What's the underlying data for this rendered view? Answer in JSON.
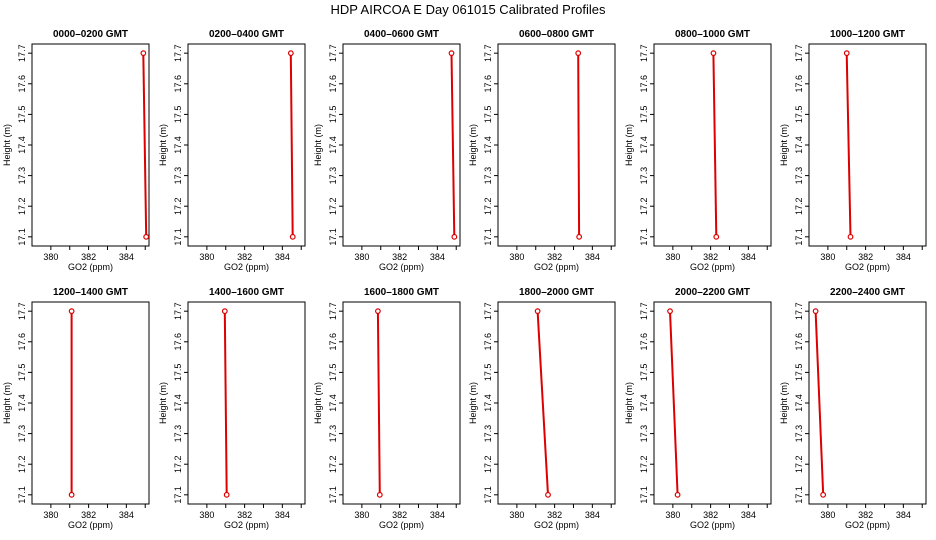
{
  "figure": {
    "title": "HDP  AIRCOA E  Day 061015  Calibrated Profiles"
  },
  "colors": {
    "line": "#dd0000",
    "axes": "#000000",
    "background": "#ffffff"
  },
  "chart_data": [
    {
      "type": "line",
      "title": "0000–0200 GMT",
      "xlabel": "GO2 (ppm)",
      "ylabel": "Height (m)",
      "xlim": [
        379,
        385.2
      ],
      "ylim": [
        17.07,
        17.73
      ],
      "xticks": [
        "380",
        "382",
        "384"
      ],
      "yticks": [
        "17.1",
        "17.2",
        "17.3",
        "17.4",
        "17.5",
        "17.6",
        "17.7"
      ],
      "series": [
        {
          "x": [
            385.05,
            384.9
          ],
          "y": [
            17.1,
            17.7
          ]
        }
      ]
    },
    {
      "type": "line",
      "title": "0200–0400 GMT",
      "xlabel": "GO2 (ppm)",
      "ylabel": "Height (m)",
      "xlim": [
        379,
        385.2
      ],
      "ylim": [
        17.07,
        17.73
      ],
      "xticks": [
        "380",
        "382",
        "384"
      ],
      "yticks": [
        "17.1",
        "17.2",
        "17.3",
        "17.4",
        "17.5",
        "17.6",
        "17.7"
      ],
      "series": [
        {
          "x": [
            384.55,
            384.45
          ],
          "y": [
            17.1,
            17.7
          ]
        }
      ]
    },
    {
      "type": "line",
      "title": "0400–0600 GMT",
      "xlabel": "GO2 (ppm)",
      "ylabel": "Height (m)",
      "xlim": [
        379,
        385.2
      ],
      "ylim": [
        17.07,
        17.73
      ],
      "xticks": [
        "380",
        "382",
        "384"
      ],
      "yticks": [
        "17.1",
        "17.2",
        "17.3",
        "17.4",
        "17.5",
        "17.6",
        "17.7"
      ],
      "series": [
        {
          "x": [
            384.9,
            384.75
          ],
          "y": [
            17.1,
            17.7
          ]
        }
      ]
    },
    {
      "type": "line",
      "title": "0600–0800 GMT",
      "xlabel": "GO2 (ppm)",
      "ylabel": "Height (m)",
      "xlim": [
        379,
        385.2
      ],
      "ylim": [
        17.07,
        17.73
      ],
      "xticks": [
        "380",
        "382",
        "384"
      ],
      "yticks": [
        "17.1",
        "17.2",
        "17.3",
        "17.4",
        "17.5",
        "17.6",
        "17.7"
      ],
      "series": [
        {
          "x": [
            383.3,
            383.25
          ],
          "y": [
            17.1,
            17.7
          ]
        }
      ]
    },
    {
      "type": "line",
      "title": "0800–1000 GMT",
      "xlabel": "GO2 (ppm)",
      "ylabel": "Height (m)",
      "xlim": [
        379,
        385.2
      ],
      "ylim": [
        17.07,
        17.73
      ],
      "xticks": [
        "380",
        "382",
        "384"
      ],
      "yticks": [
        "17.1",
        "17.2",
        "17.3",
        "17.4",
        "17.5",
        "17.6",
        "17.7"
      ],
      "series": [
        {
          "x": [
            382.3,
            382.15
          ],
          "y": [
            17.1,
            17.7
          ]
        }
      ]
    },
    {
      "type": "line",
      "title": "1000–1200 GMT",
      "xlabel": "GO2 (ppm)",
      "ylabel": "Height (m)",
      "xlim": [
        379,
        385.2
      ],
      "ylim": [
        17.07,
        17.73
      ],
      "xticks": [
        "380",
        "382",
        "384"
      ],
      "yticks": [
        "17.1",
        "17.2",
        "17.3",
        "17.4",
        "17.5",
        "17.6",
        "17.7"
      ],
      "series": [
        {
          "x": [
            381.2,
            381.0
          ],
          "y": [
            17.1,
            17.7
          ]
        }
      ]
    },
    {
      "type": "line",
      "title": "1200–1400 GMT",
      "xlabel": "GO2 (ppm)",
      "ylabel": "Height (m)",
      "xlim": [
        379,
        385.2
      ],
      "ylim": [
        17.07,
        17.73
      ],
      "xticks": [
        "380",
        "382",
        "384"
      ],
      "yticks": [
        "17.1",
        "17.2",
        "17.3",
        "17.4",
        "17.5",
        "17.6",
        "17.7"
      ],
      "series": [
        {
          "x": [
            381.1,
            381.1
          ],
          "y": [
            17.1,
            17.7
          ]
        }
      ]
    },
    {
      "type": "line",
      "title": "1400–1600 GMT",
      "xlabel": "GO2 (ppm)",
      "ylabel": "Height (m)",
      "xlim": [
        379,
        385.2
      ],
      "ylim": [
        17.07,
        17.73
      ],
      "xticks": [
        "380",
        "382",
        "384"
      ],
      "yticks": [
        "17.1",
        "17.2",
        "17.3",
        "17.4",
        "17.5",
        "17.6",
        "17.7"
      ],
      "series": [
        {
          "x": [
            381.05,
            380.95
          ],
          "y": [
            17.1,
            17.7
          ]
        }
      ]
    },
    {
      "type": "line",
      "title": "1600–1800 GMT",
      "xlabel": "GO2 (ppm)",
      "ylabel": "Height (m)",
      "xlim": [
        379,
        385.2
      ],
      "ylim": [
        17.07,
        17.73
      ],
      "xticks": [
        "380",
        "382",
        "384"
      ],
      "yticks": [
        "17.1",
        "17.2",
        "17.3",
        "17.4",
        "17.5",
        "17.6",
        "17.7"
      ],
      "series": [
        {
          "x": [
            380.95,
            380.85
          ],
          "y": [
            17.1,
            17.7
          ]
        }
      ]
    },
    {
      "type": "line",
      "title": "1800–2000 GMT",
      "xlabel": "GO2 (ppm)",
      "ylabel": "Height (m)",
      "xlim": [
        379,
        385.2
      ],
      "ylim": [
        17.07,
        17.73
      ],
      "xticks": [
        "380",
        "382",
        "384"
      ],
      "yticks": [
        "17.1",
        "17.2",
        "17.3",
        "17.4",
        "17.5",
        "17.6",
        "17.7"
      ],
      "series": [
        {
          "x": [
            381.65,
            381.1
          ],
          "y": [
            17.1,
            17.7
          ]
        }
      ]
    },
    {
      "type": "line",
      "title": "2000–2200 GMT",
      "xlabel": "GO2 (ppm)",
      "ylabel": "Height (m)",
      "xlim": [
        379,
        385.2
      ],
      "ylim": [
        17.07,
        17.73
      ],
      "xticks": [
        "380",
        "382",
        "384"
      ],
      "yticks": [
        "17.1",
        "17.2",
        "17.3",
        "17.4",
        "17.5",
        "17.6",
        "17.7"
      ],
      "series": [
        {
          "x": [
            380.25,
            379.85
          ],
          "y": [
            17.1,
            17.7
          ]
        }
      ]
    },
    {
      "type": "line",
      "title": "2200–2400 GMT",
      "xlabel": "GO2 (ppm)",
      "ylabel": "Height (m)",
      "xlim": [
        379,
        385.2
      ],
      "ylim": [
        17.07,
        17.73
      ],
      "xticks": [
        "380",
        "382",
        "384"
      ],
      "yticks": [
        "17.1",
        "17.2",
        "17.3",
        "17.4",
        "17.5",
        "17.6",
        "17.7"
      ],
      "series": [
        {
          "x": [
            379.75,
            379.35
          ],
          "y": [
            17.1,
            17.7
          ]
        }
      ]
    }
  ]
}
